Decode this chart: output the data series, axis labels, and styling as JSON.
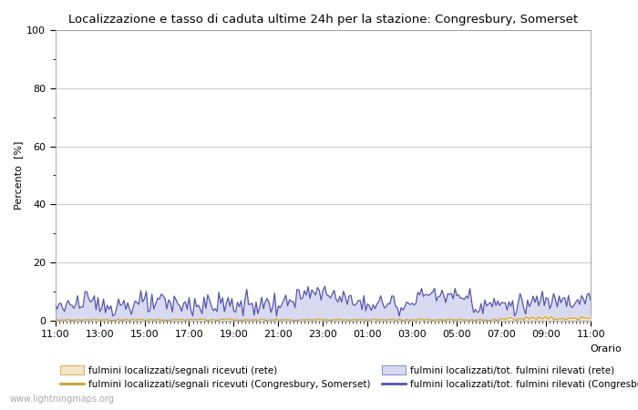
{
  "title": "Localizzazione e tasso di caduta ultime 24h per la stazione: Congresbury, Somerset",
  "ylabel": "Percento  [%]",
  "xlabel_right": "Orario",
  "watermark": "www.lightningmaps.org",
  "x_tick_labels": [
    "11:00",
    "13:00",
    "15:00",
    "17:00",
    "19:00",
    "21:00",
    "23:00",
    "01:00",
    "03:00",
    "05:00",
    "07:00",
    "09:00",
    "11:00"
  ],
  "ylim": [
    0,
    100
  ],
  "yticks": [
    0,
    20,
    40,
    60,
    80,
    100
  ],
  "yticks_minor": [
    10,
    30,
    50,
    70,
    90
  ],
  "fill_rete_color": "#f5e6c8",
  "fill_rete_edge": "#d4b86a",
  "fill_congresbury_color": "#d8daf2",
  "fill_congresbury_edge": "#9090cc",
  "line_rete_color": "#c8a030",
  "line_congresbury_color": "#5555aa",
  "legend_labels": [
    "fulmini localizzati/segnali ricevuti (rete)",
    "fulmini localizzati/segnali ricevuti (Congresbury, Somerset)",
    "fulmini localizzati/tot. fulmini rilevati (rete)",
    "fulmini localizzati/tot. fulmini rilevati (Congresbury, Somerset)"
  ],
  "background_color": "#ffffff",
  "grid_color": "#cccccc",
  "n_points": 289
}
